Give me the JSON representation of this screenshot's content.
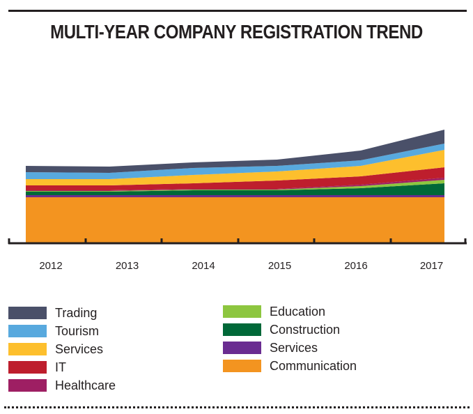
{
  "chart_data": {
    "type": "area",
    "title": "MULTI-YEAR COMPANY REGISTRATION TREND",
    "categories": [
      "2012",
      "2013",
      "2014",
      "2015",
      "2016",
      "2017"
    ],
    "stacked": true,
    "series": [
      {
        "name": "Communication",
        "color": "#f39420",
        "values": [
          66,
          66,
          66,
          66,
          66,
          66
        ]
      },
      {
        "name": "Services",
        "color": "#6a2c91",
        "values": [
          3,
          3,
          3,
          3,
          3,
          3
        ]
      },
      {
        "name": "Construction",
        "color": "#006838",
        "values": [
          5,
          5,
          7,
          7,
          10,
          17
        ]
      },
      {
        "name": "Education",
        "color": "#8dc63f",
        "values": [
          1,
          1,
          1,
          1,
          3,
          5
        ]
      },
      {
        "name": "Healthcare",
        "color": "#9e1f63",
        "values": [
          1,
          1,
          1,
          1,
          2,
          3
        ]
      },
      {
        "name": "IT",
        "color": "#be1e2d",
        "values": [
          7,
          7,
          8,
          12,
          12,
          15
        ]
      },
      {
        "name": "Services",
        "color": "#fdbf2d",
        "values": [
          9,
          9,
          12,
          13,
          15,
          25
        ]
      },
      {
        "name": "Tourism",
        "color": "#58a9de",
        "values": [
          10,
          9,
          10,
          8,
          8,
          9
        ]
      },
      {
        "name": "Trading",
        "color": "#4a5069",
        "values": [
          9,
          9,
          8,
          9,
          14,
          20
        ]
      }
    ]
  },
  "legend": {
    "left": [
      {
        "label": "Trading",
        "color": "#4a5069"
      },
      {
        "label": "Tourism",
        "color": "#58a9de"
      },
      {
        "label": "Services",
        "color": "#fdbf2d"
      },
      {
        "label": "IT",
        "color": "#be1e2d"
      },
      {
        "label": "Healthcare",
        "color": "#9e1f63"
      }
    ],
    "right": [
      {
        "label": "Education",
        "color": "#8dc63f"
      },
      {
        "label": "Construction",
        "color": "#006838"
      },
      {
        "label": "Services",
        "color": "#6a2c91"
      },
      {
        "label": "Communication",
        "color": "#f39420"
      }
    ]
  }
}
